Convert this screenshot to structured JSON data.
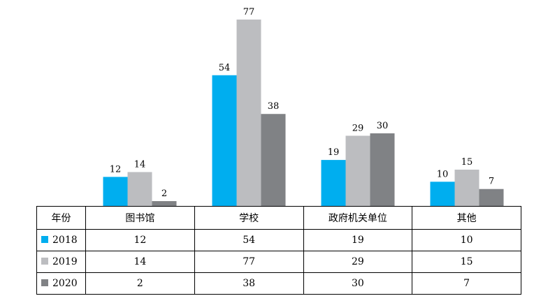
{
  "chart_data": {
    "type": "bar",
    "categories": [
      "图书馆",
      "学校",
      "政府机关单位",
      "其他"
    ],
    "series": [
      {
        "name": "2018",
        "values": [
          12,
          54,
          19,
          10
        ],
        "color": "#00aeef"
      },
      {
        "name": "2019",
        "values": [
          14,
          77,
          29,
          15
        ],
        "color": "#bcbdc0"
      },
      {
        "name": "2020",
        "values": [
          2,
          38,
          30,
          7
        ],
        "color": "#808285"
      }
    ],
    "title": "",
    "xlabel": "",
    "ylabel": "",
    "ylim": [
      0,
      77
    ],
    "grid": false,
    "legend": "data-table-bottom",
    "table_header": "年份",
    "show_data_labels": true
  }
}
